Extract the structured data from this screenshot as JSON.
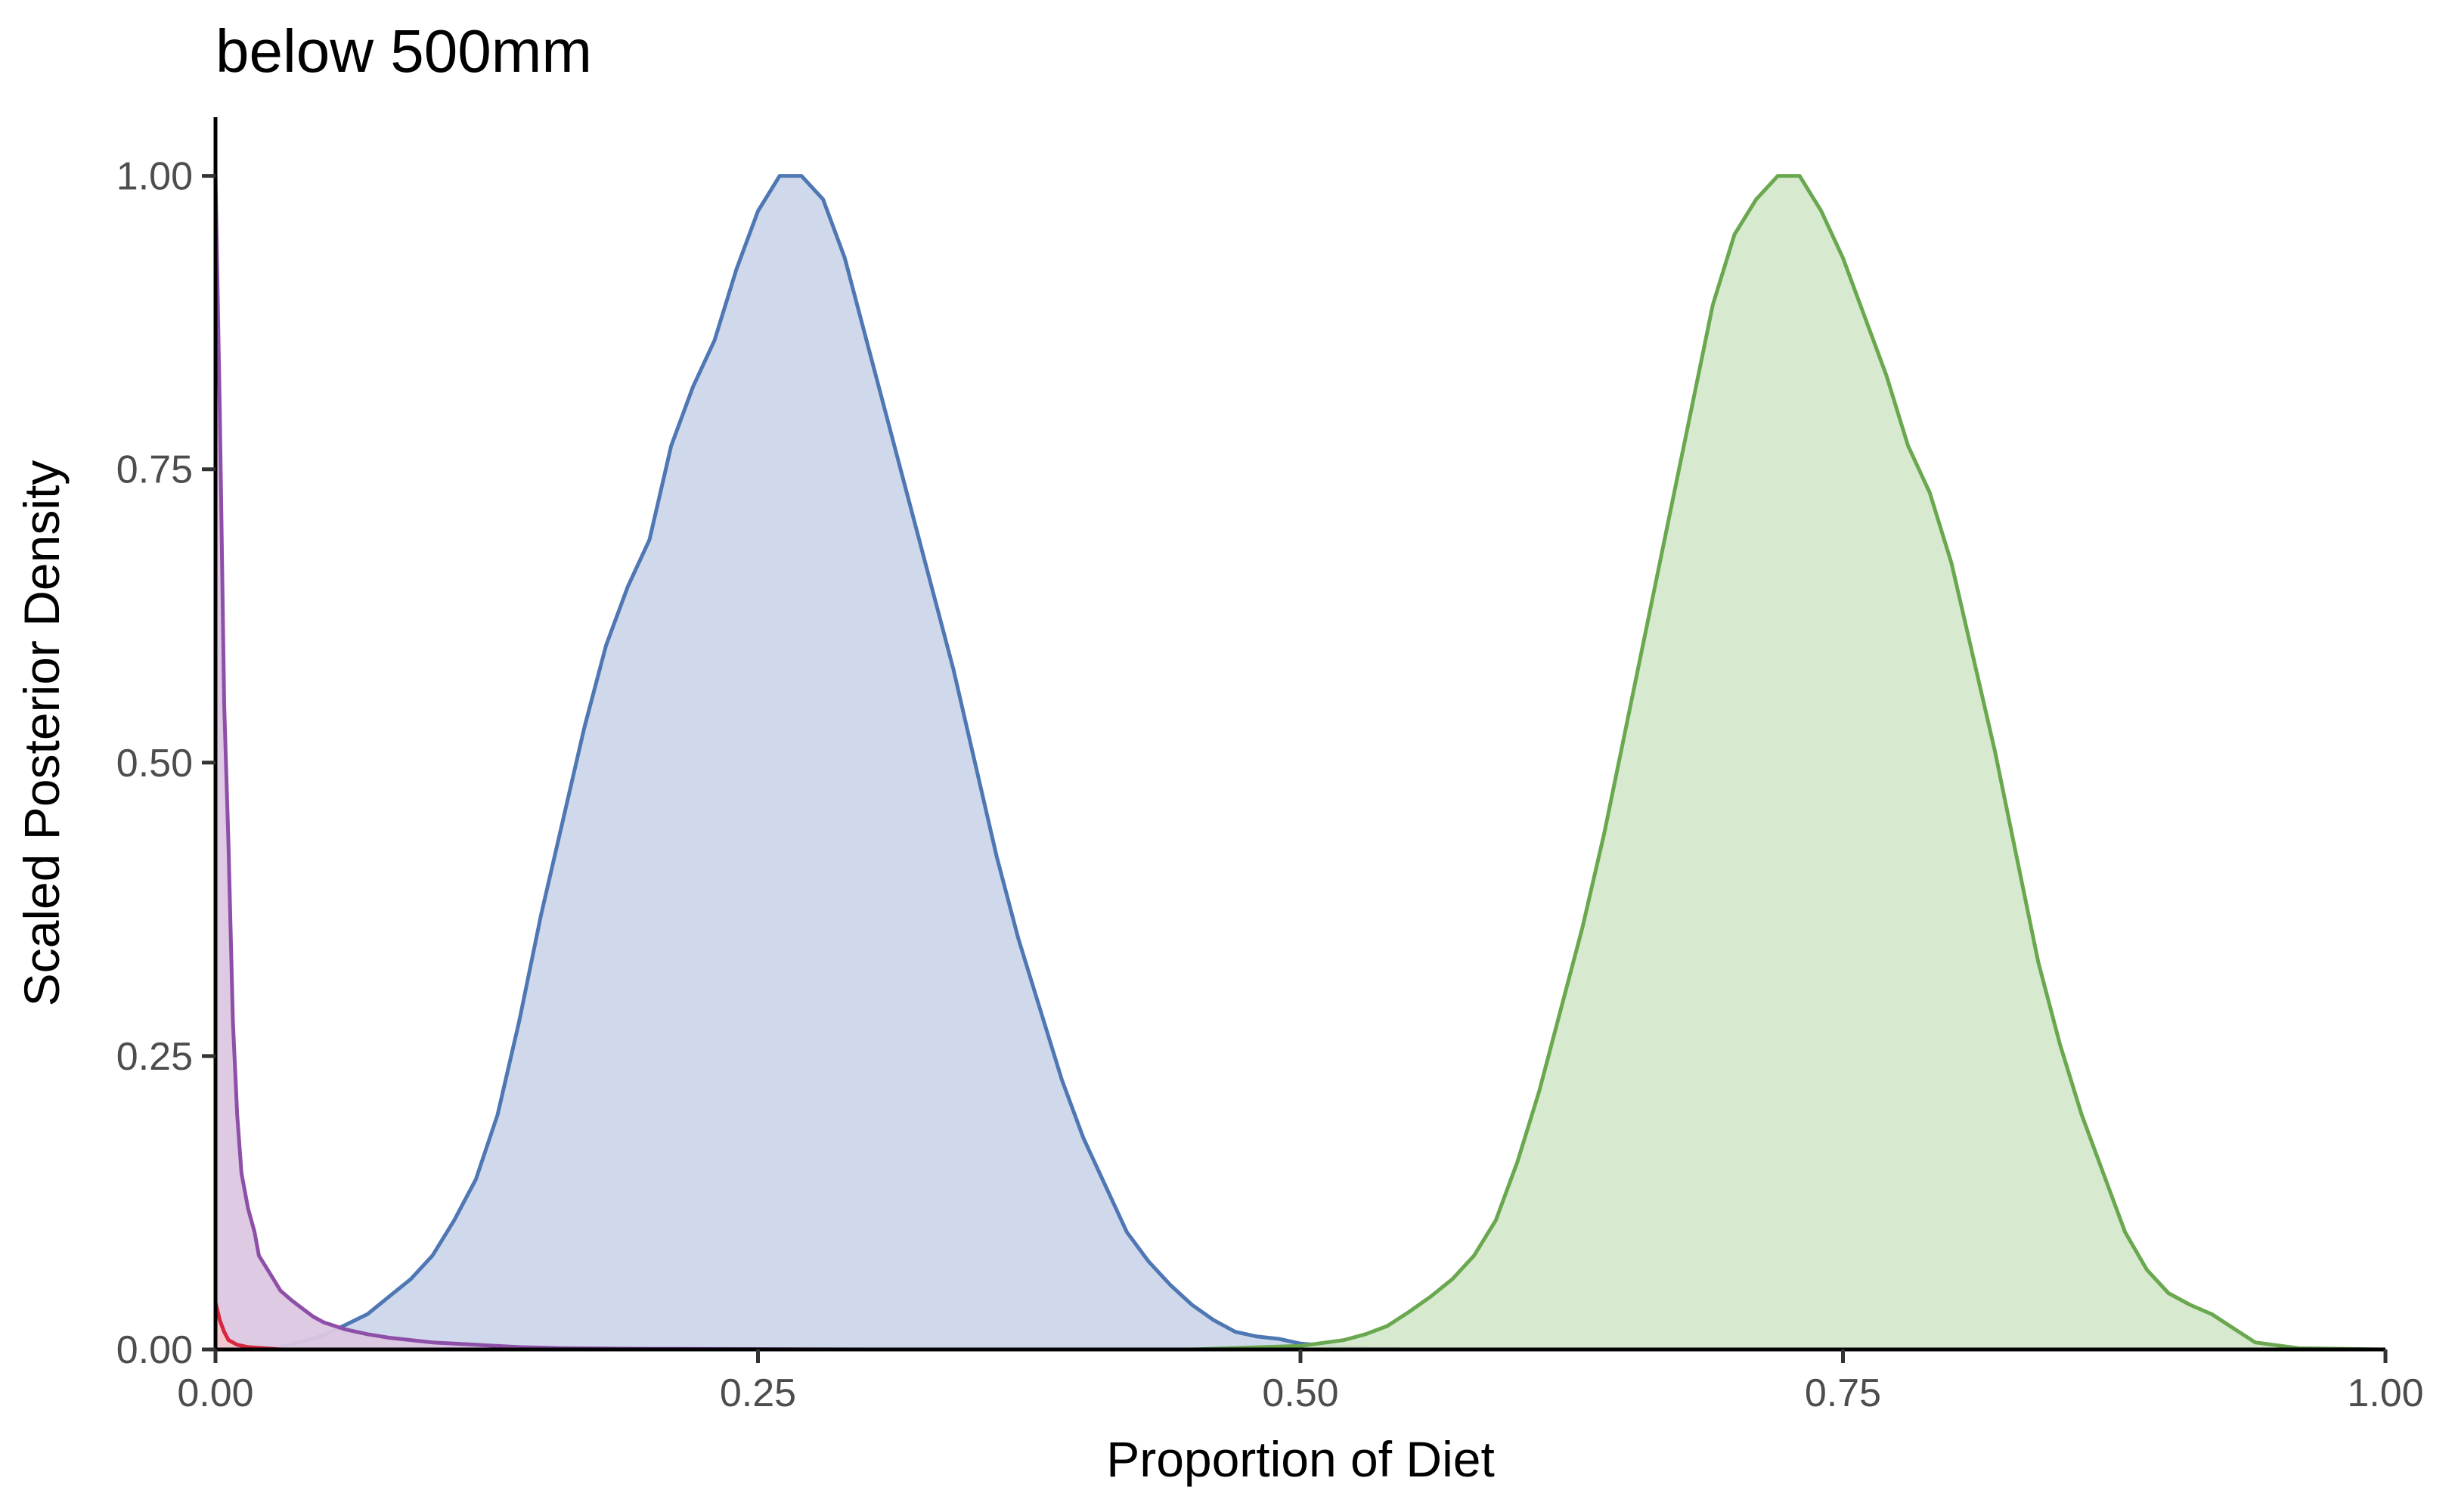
{
  "chart_data": {
    "type": "area",
    "title": "below 500mm",
    "xlabel": "Proportion of Diet",
    "ylabel": "Scaled Posterior Density",
    "xlim": [
      0,
      1
    ],
    "ylim": [
      0,
      1.05
    ],
    "x_ticks": [
      "0.00",
      "0.25",
      "0.50",
      "0.75",
      "1.00"
    ],
    "y_ticks": [
      "0.00",
      "0.25",
      "0.50",
      "0.75",
      "1.00"
    ],
    "grid": false,
    "legend": "none",
    "series": [
      {
        "color": "#4f77b3",
        "fill": "#ccd7ea",
        "points": [
          [
            0.01,
            0
          ],
          [
            0.03,
            0.002
          ],
          [
            0.05,
            0.012
          ],
          [
            0.07,
            0.03
          ],
          [
            0.08,
            0.045
          ],
          [
            0.09,
            0.06
          ],
          [
            0.1,
            0.08
          ],
          [
            0.11,
            0.11
          ],
          [
            0.12,
            0.145
          ],
          [
            0.13,
            0.2
          ],
          [
            0.14,
            0.28
          ],
          [
            0.15,
            0.37
          ],
          [
            0.16,
            0.45
          ],
          [
            0.17,
            0.53
          ],
          [
            0.18,
            0.6
          ],
          [
            0.19,
            0.65
          ],
          [
            0.2,
            0.69
          ],
          [
            0.21,
            0.77
          ],
          [
            0.22,
            0.82
          ],
          [
            0.23,
            0.86
          ],
          [
            0.24,
            0.92
          ],
          [
            0.25,
            0.97
          ],
          [
            0.26,
            1.0
          ],
          [
            0.27,
            1.0
          ],
          [
            0.28,
            0.98
          ],
          [
            0.29,
            0.93
          ],
          [
            0.3,
            0.86
          ],
          [
            0.31,
            0.79
          ],
          [
            0.32,
            0.72
          ],
          [
            0.33,
            0.65
          ],
          [
            0.34,
            0.58
          ],
          [
            0.35,
            0.5
          ],
          [
            0.36,
            0.42
          ],
          [
            0.37,
            0.35
          ],
          [
            0.38,
            0.29
          ],
          [
            0.39,
            0.23
          ],
          [
            0.4,
            0.18
          ],
          [
            0.41,
            0.14
          ],
          [
            0.42,
            0.1
          ],
          [
            0.43,
            0.075
          ],
          [
            0.44,
            0.055
          ],
          [
            0.45,
            0.038
          ],
          [
            0.46,
            0.025
          ],
          [
            0.47,
            0.015
          ],
          [
            0.48,
            0.011
          ],
          [
            0.49,
            0.009
          ],
          [
            0.5,
            0.005
          ],
          [
            0.52,
            0.002
          ],
          [
            0.55,
            0
          ]
        ]
      },
      {
        "color": "#6aa84f",
        "fill": "#d5e8cc",
        "points": [
          [
            0.45,
            0
          ],
          [
            0.5,
            0.003
          ],
          [
            0.52,
            0.008
          ],
          [
            0.53,
            0.013
          ],
          [
            0.54,
            0.02
          ],
          [
            0.55,
            0.032
          ],
          [
            0.56,
            0.045
          ],
          [
            0.57,
            0.06
          ],
          [
            0.58,
            0.08
          ],
          [
            0.59,
            0.11
          ],
          [
            0.6,
            0.16
          ],
          [
            0.61,
            0.22
          ],
          [
            0.62,
            0.29
          ],
          [
            0.63,
            0.36
          ],
          [
            0.64,
            0.44
          ],
          [
            0.65,
            0.53
          ],
          [
            0.66,
            0.62
          ],
          [
            0.67,
            0.71
          ],
          [
            0.68,
            0.8
          ],
          [
            0.69,
            0.89
          ],
          [
            0.7,
            0.95
          ],
          [
            0.71,
            0.98
          ],
          [
            0.72,
            1.0
          ],
          [
            0.73,
            1.0
          ],
          [
            0.74,
            0.97
          ],
          [
            0.75,
            0.93
          ],
          [
            0.76,
            0.88
          ],
          [
            0.77,
            0.83
          ],
          [
            0.78,
            0.77
          ],
          [
            0.79,
            0.73
          ],
          [
            0.8,
            0.67
          ],
          [
            0.81,
            0.59
          ],
          [
            0.82,
            0.51
          ],
          [
            0.83,
            0.42
          ],
          [
            0.84,
            0.33
          ],
          [
            0.85,
            0.26
          ],
          [
            0.86,
            0.2
          ],
          [
            0.87,
            0.15
          ],
          [
            0.88,
            0.1
          ],
          [
            0.89,
            0.068
          ],
          [
            0.9,
            0.048
          ],
          [
            0.91,
            0.038
          ],
          [
            0.92,
            0.03
          ],
          [
            0.93,
            0.018
          ],
          [
            0.94,
            0.006
          ],
          [
            0.96,
            0.001
          ],
          [
            1.0,
            0
          ]
        ]
      },
      {
        "color": "#8e4fa8",
        "fill": "#dcc7e2",
        "points": [
          [
            0.0,
            1.0
          ],
          [
            0.002,
            0.8
          ],
          [
            0.004,
            0.55
          ],
          [
            0.006,
            0.43
          ],
          [
            0.008,
            0.28
          ],
          [
            0.01,
            0.2
          ],
          [
            0.012,
            0.15
          ],
          [
            0.015,
            0.12
          ],
          [
            0.018,
            0.1
          ],
          [
            0.02,
            0.08
          ],
          [
            0.025,
            0.065
          ],
          [
            0.03,
            0.05
          ],
          [
            0.035,
            0.042
          ],
          [
            0.04,
            0.035
          ],
          [
            0.045,
            0.028
          ],
          [
            0.05,
            0.023
          ],
          [
            0.06,
            0.017
          ],
          [
            0.07,
            0.013
          ],
          [
            0.08,
            0.01
          ],
          [
            0.09,
            0.008
          ],
          [
            0.1,
            0.006
          ],
          [
            0.12,
            0.004
          ],
          [
            0.14,
            0.002
          ],
          [
            0.16,
            0.001
          ],
          [
            0.2,
            0.0005
          ],
          [
            0.3,
            0
          ]
        ]
      },
      {
        "color": "#d7263d",
        "fill": "#f2c6cc",
        "points": [
          [
            0.0,
            0.04
          ],
          [
            0.002,
            0.025
          ],
          [
            0.004,
            0.015
          ],
          [
            0.006,
            0.008
          ],
          [
            0.01,
            0.004
          ],
          [
            0.015,
            0.002
          ],
          [
            0.03,
            0
          ]
        ]
      }
    ]
  }
}
